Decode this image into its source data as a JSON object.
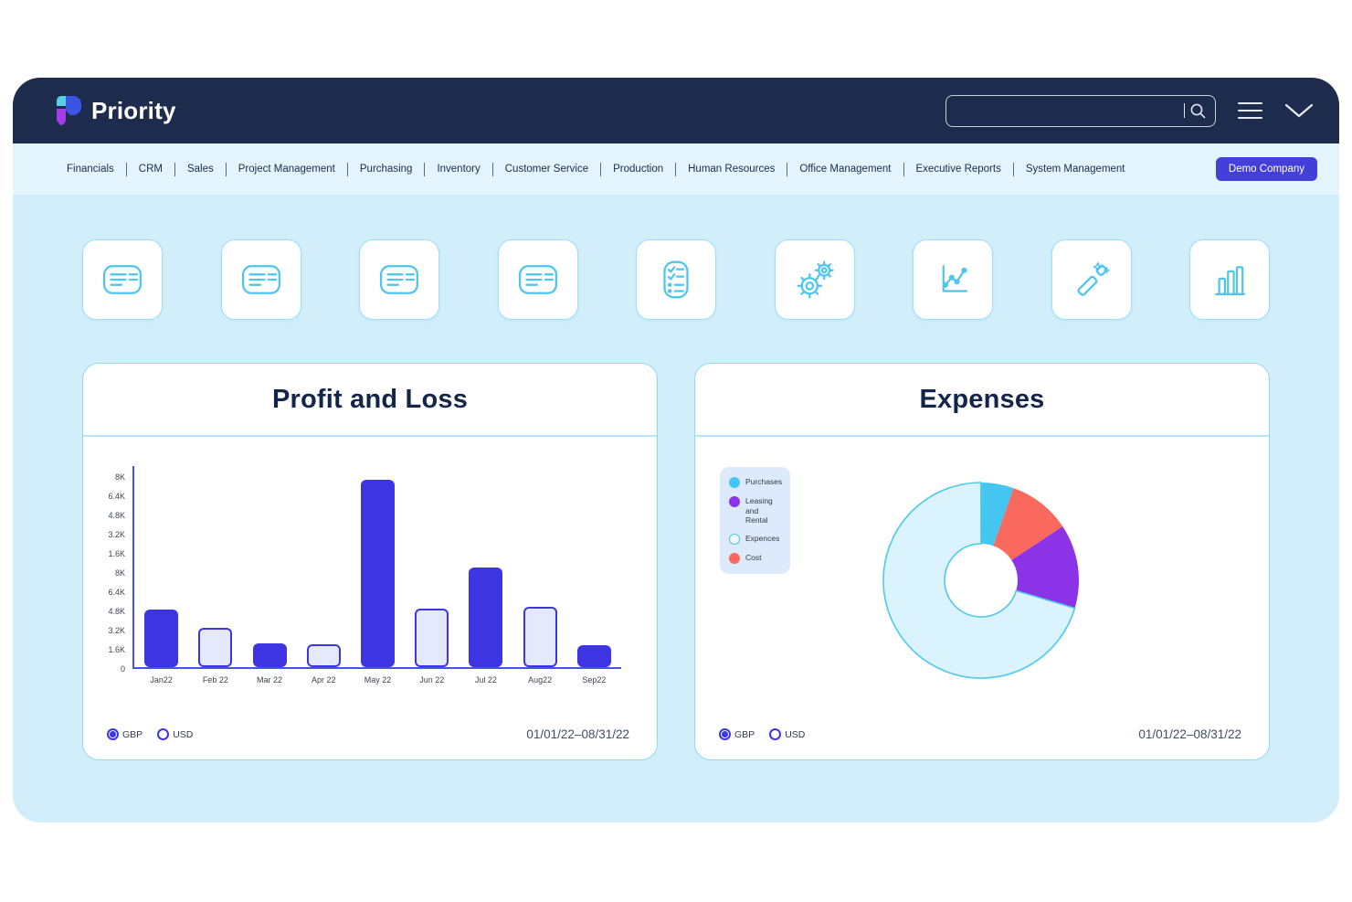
{
  "colors": {
    "topbar_bg": "#1d2b4d",
    "navbar_bg": "#e3f4fc",
    "main_bg": "#d3eefb",
    "accent_indigo": "#3d35e1",
    "axis_blue": "#4653e6",
    "tile_cyan": "#4fc5f0",
    "card_border": "#8adcf6",
    "title_navy": "#14254c",
    "company_button_bg": "#453fd9"
  },
  "header": {
    "brand": "Priority",
    "search": {
      "value": "",
      "placeholder": ""
    }
  },
  "navbar": {
    "items": [
      "Financials",
      "CRM",
      "Sales",
      "Project Management",
      "Purchasing",
      "Inventory",
      "Customer Service",
      "Production",
      "Human Resources",
      "Office Management",
      "Executive Reports",
      "System Management"
    ],
    "company_button_label": "Demo Company"
  },
  "tiles": [
    {
      "icon": "form-icon"
    },
    {
      "icon": "form-icon"
    },
    {
      "icon": "form-icon"
    },
    {
      "icon": "form-icon"
    },
    {
      "icon": "checklist-icon"
    },
    {
      "icon": "gears-icon"
    },
    {
      "icon": "line-chart-icon"
    },
    {
      "icon": "magic-wand-icon"
    },
    {
      "icon": "bar-chart-icon"
    }
  ],
  "profit_loss_card": {
    "title": "Profit and Loss",
    "currency_options": [
      {
        "label": "GBP",
        "selected": true
      },
      {
        "label": "USD",
        "selected": false
      }
    ],
    "date_range": "01/01/22–08/31/22"
  },
  "expenses_card": {
    "title": "Expenses",
    "legend": [
      {
        "label": "Purchases",
        "swatch": "#45c6f1",
        "style": "filled"
      },
      {
        "label": "Leasing and Rental",
        "swatch": "#8c33e8",
        "style": "filled"
      },
      {
        "label": "Expences",
        "swatch": "#daf3fc",
        "style": "outlined"
      },
      {
        "label": "Cost",
        "swatch": "#f9695e",
        "style": "filled"
      }
    ],
    "currency_options": [
      {
        "label": "GBP",
        "selected": true
      },
      {
        "label": "USD",
        "selected": false
      }
    ],
    "date_range": "01/01/22–08/31/22"
  },
  "chart_data": [
    {
      "type": "bar",
      "title": "Profit and Loss",
      "categories": [
        "Jan22",
        "Feb 22",
        "Mar 22",
        "Apr 22",
        "May 22",
        "Jun 22",
        "Jul 22",
        "Aug22",
        "Sep22"
      ],
      "values": [
        4800,
        3300,
        2000,
        1900,
        15600,
        4900,
        8300,
        5000,
        1800
      ],
      "bar_styles": [
        "solid",
        "outline",
        "solid",
        "outline",
        "solid",
        "outline",
        "solid",
        "outline",
        "solid"
      ],
      "ylim": [
        0,
        16000
      ],
      "y_tick_labels_top_to_bottom": [
        "8K",
        "6.4K",
        "4.8K",
        "3.2K",
        "1.6K",
        "8K",
        "6.4K",
        "4.8K",
        "3.2K",
        "1.6K",
        "0"
      ],
      "grid": false,
      "xlabel": "",
      "ylabel": "",
      "bar_color_solid": "#3d35e1",
      "bar_fill_outline": "#e4eafb"
    },
    {
      "type": "pie",
      "title": "Expenses",
      "donut": true,
      "slices_clockwise_from_top": [
        {
          "label": "Purchases",
          "percent": 5.4,
          "color": "#45c6f1"
        },
        {
          "label": "Cost",
          "percent": 10.3,
          "color": "#f9695e"
        },
        {
          "label": "Leasing and Rental",
          "percent": 13.9,
          "color": "#8c33e8"
        },
        {
          "label": "Expences",
          "percent": 70.4,
          "color": "#daf3fc",
          "stroke": "#4dc8ef"
        }
      ],
      "legend_position": "upper-left"
    }
  ]
}
